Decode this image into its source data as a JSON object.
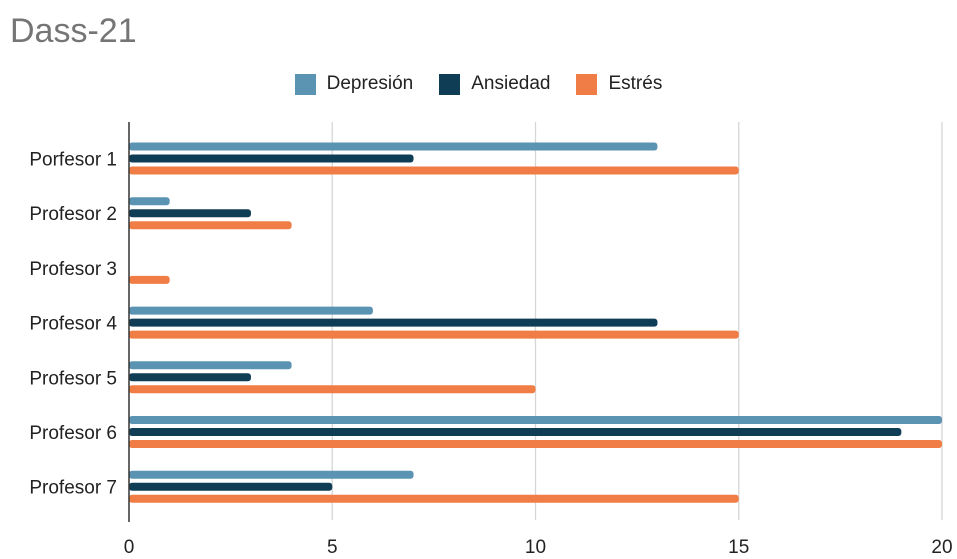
{
  "chart_data": {
    "type": "bar",
    "orientation": "horizontal",
    "title": "Dass-21",
    "categories": [
      "Porfesor 1",
      "Profesor 2",
      "Profesor 3",
      "Profesor 4",
      "Profesor 5",
      "Profesor 6",
      "Profesor 7"
    ],
    "series": [
      {
        "name": "Depresión",
        "color": "#5b93b3",
        "values": [
          13,
          1,
          0,
          6,
          4,
          20,
          7
        ]
      },
      {
        "name": "Ansiedad",
        "color": "#0f3d55",
        "values": [
          7,
          3,
          0,
          13,
          3,
          19,
          5
        ]
      },
      {
        "name": "Estrés",
        "color": "#f07d45",
        "values": [
          15,
          4,
          1,
          15,
          10,
          20,
          15
        ]
      }
    ],
    "xlim": [
      0,
      20
    ],
    "xticks": [
      "0",
      "5",
      "10",
      "15",
      "20"
    ],
    "xlabel": "",
    "ylabel": "",
    "grid": "vertical",
    "legend_position": "top"
  }
}
